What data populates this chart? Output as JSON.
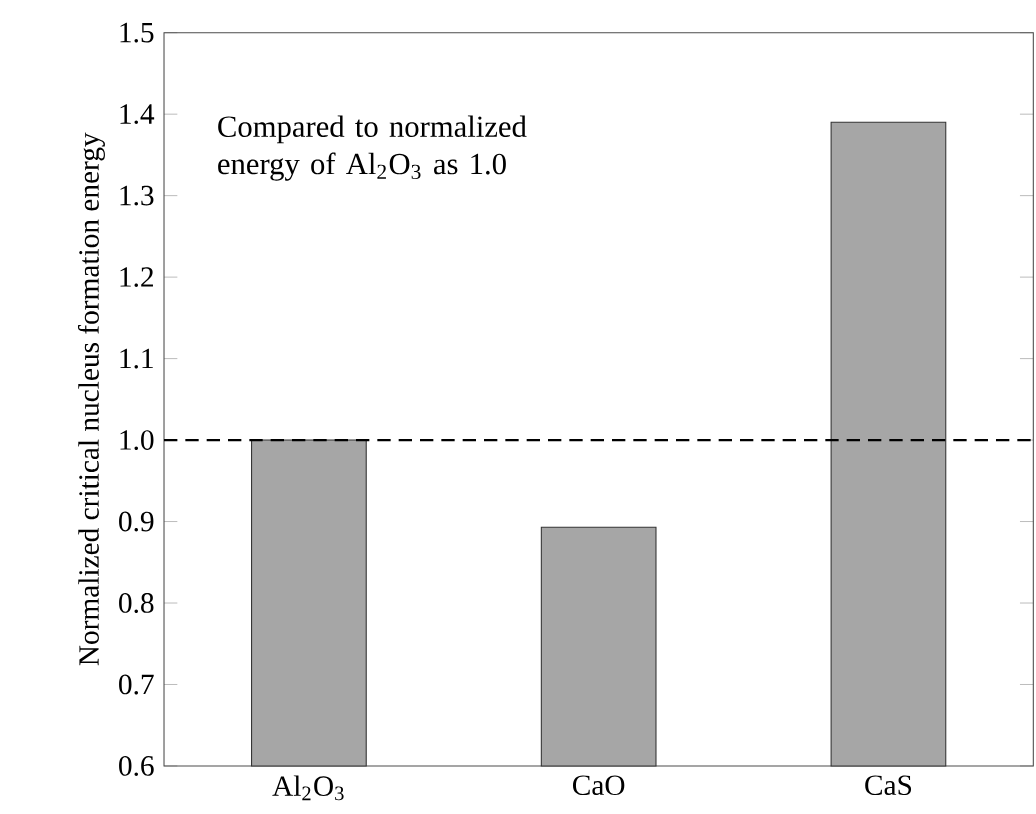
{
  "chart_data": {
    "type": "bar",
    "ylabel": "Normalized critical nucleus formation energy",
    "categories": [
      "Al$_{2}$O$_{3}$",
      "CaO",
      "CaS"
    ],
    "values": [
      1.0,
      0.893,
      1.39
    ],
    "color": "#a6a6a6",
    "ylim": [
      0.6,
      1.5
    ],
    "yticks": [
      0.6,
      0.7,
      0.8,
      0.9,
      {
        "value": 1.0,
        "label": "1.0"
      },
      1.1,
      1.2,
      1.3,
      1.4,
      1.5
    ],
    "ref_lines": [
      {
        "axis": "y",
        "value": 1.0,
        "line_style": "dashed",
        "color": "#000000"
      }
    ],
    "annotations": [
      "Compared to normalized energy of Al$_{2}$O$_{3}$ as 1.0"
    ]
  }
}
